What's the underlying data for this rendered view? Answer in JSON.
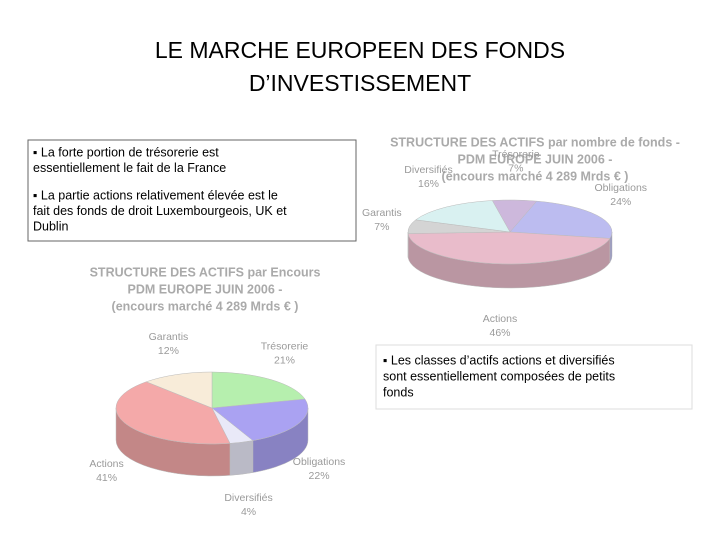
{
  "title_lines": [
    "LE MARCHE EUROPEEN DES FONDS",
    "D’INVESTISSEMENT"
  ],
  "box_top": {
    "lines": [
      "▪ La forte portion de trésorerie est",
      "essentiellement le fait de la France",
      "▪ La partie actions relativement élevée est le",
      "fait des fonds de droit Luxembourgeois, UK et",
      "Dublin"
    ]
  },
  "box_bottom": {
    "lines": [
      "▪ Les classes d’actifs actions et diversifiés",
      "sont essentiellement composées de petits",
      "fonds"
    ]
  },
  "chart_data": [
    {
      "type": "pie",
      "title_lines": [
        "STRUCTURE DES ACTIFS  par nombre de fonds -",
        "PDM EUROPE JUIN 2006 -",
        "(encours marché 4 289 Mrds € )"
      ],
      "categories": [
        "Trésorerie",
        "Obligations",
        "Actions",
        "Garantis",
        "Diversifiés"
      ],
      "values": [
        7,
        24,
        46,
        7,
        16
      ],
      "value_labels": [
        "7%",
        "24%",
        "46%",
        "7%",
        "16%"
      ],
      "colors": [
        "#cdb8dc",
        "#bcbcf0",
        "#e9bccb",
        "#d4d4d4",
        "#d9f1f1"
      ]
    },
    {
      "type": "pie",
      "title_lines": [
        "STRUCTURE DES ACTIFS par Encours",
        "PDM EUROPE JUIN 2006 -",
        "(encours marché 4 289 Mrds € )"
      ],
      "categories": [
        "Trésorerie",
        "Obligations",
        "Diversifiés",
        "Actions",
        "Garantis"
      ],
      "values": [
        21,
        22,
        4,
        41,
        12
      ],
      "value_labels": [
        "21%",
        "22%",
        "4%",
        "41%",
        "12%"
      ],
      "colors": [
        "#b6efae",
        "#aaa2f2",
        "#e9e9f8",
        "#f4a9a9",
        "#f8ecd9"
      ]
    }
  ]
}
